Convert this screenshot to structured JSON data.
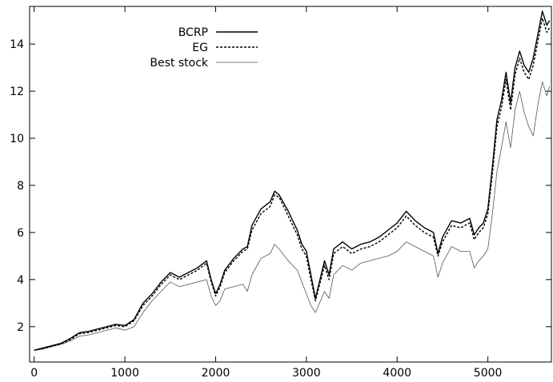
{
  "chart_data": {
    "type": "line",
    "title": "",
    "xlabel": "",
    "ylabel": "",
    "xlim": [
      -50,
      5700
    ],
    "ylim": [
      0.5,
      15.6
    ],
    "grid": false,
    "legend_position": "top-left",
    "x_ticks": [
      {
        "value": 0,
        "label": "0"
      },
      {
        "value": 1000,
        "label": "1000"
      },
      {
        "value": 2000,
        "label": "2000"
      },
      {
        "value": 3000,
        "label": "3000"
      },
      {
        "value": 4000,
        "label": "4000"
      },
      {
        "value": 5000,
        "label": "5000"
      }
    ],
    "y_ticks": [
      {
        "value": 2,
        "label": "2"
      },
      {
        "value": 4,
        "label": "4"
      },
      {
        "value": 6,
        "label": "6"
      },
      {
        "value": 8,
        "label": "8"
      },
      {
        "value": 10,
        "label": "10"
      },
      {
        "value": 12,
        "label": "12"
      },
      {
        "value": 14,
        "label": "14"
      }
    ],
    "series": [
      {
        "name": "BCRP",
        "style": "solid-thick",
        "color": "#000000",
        "points": [
          [
            0,
            1.0
          ],
          [
            100,
            1.1
          ],
          [
            200,
            1.2
          ],
          [
            300,
            1.3
          ],
          [
            400,
            1.5
          ],
          [
            500,
            1.75
          ],
          [
            600,
            1.8
          ],
          [
            700,
            1.9
          ],
          [
            800,
            2.0
          ],
          [
            900,
            2.1
          ],
          [
            1000,
            2.05
          ],
          [
            1100,
            2.3
          ],
          [
            1200,
            3.0
          ],
          [
            1300,
            3.4
          ],
          [
            1400,
            3.9
          ],
          [
            1500,
            4.3
          ],
          [
            1600,
            4.1
          ],
          [
            1700,
            4.3
          ],
          [
            1800,
            4.5
          ],
          [
            1900,
            4.8
          ],
          [
            1950,
            4.0
          ],
          [
            2000,
            3.4
          ],
          [
            2050,
            3.8
          ],
          [
            2100,
            4.4
          ],
          [
            2200,
            4.9
          ],
          [
            2300,
            5.3
          ],
          [
            2350,
            5.4
          ],
          [
            2400,
            6.3
          ],
          [
            2500,
            7.0
          ],
          [
            2600,
            7.3
          ],
          [
            2650,
            7.75
          ],
          [
            2700,
            7.6
          ],
          [
            2800,
            6.9
          ],
          [
            2900,
            6.1
          ],
          [
            2950,
            5.5
          ],
          [
            3000,
            5.2
          ],
          [
            3050,
            4.2
          ],
          [
            3100,
            3.2
          ],
          [
            3200,
            4.8
          ],
          [
            3250,
            4.2
          ],
          [
            3300,
            5.3
          ],
          [
            3400,
            5.6
          ],
          [
            3500,
            5.3
          ],
          [
            3600,
            5.5
          ],
          [
            3700,
            5.6
          ],
          [
            3800,
            5.8
          ],
          [
            3900,
            6.1
          ],
          [
            4000,
            6.4
          ],
          [
            4100,
            6.9
          ],
          [
            4200,
            6.5
          ],
          [
            4300,
            6.2
          ],
          [
            4400,
            6.0
          ],
          [
            4450,
            5.1
          ],
          [
            4500,
            5.8
          ],
          [
            4600,
            6.5
          ],
          [
            4700,
            6.4
          ],
          [
            4800,
            6.6
          ],
          [
            4850,
            5.9
          ],
          [
            4900,
            6.2
          ],
          [
            4950,
            6.4
          ],
          [
            5000,
            7.0
          ],
          [
            5050,
            8.8
          ],
          [
            5100,
            10.8
          ],
          [
            5150,
            11.6
          ],
          [
            5200,
            12.8
          ],
          [
            5250,
            11.5
          ],
          [
            5300,
            13.0
          ],
          [
            5350,
            13.7
          ],
          [
            5400,
            13.1
          ],
          [
            5450,
            12.8
          ],
          [
            5500,
            13.4
          ],
          [
            5550,
            14.4
          ],
          [
            5600,
            15.4
          ],
          [
            5650,
            14.8
          ],
          [
            5680,
            15.0
          ]
        ]
      },
      {
        "name": "EG",
        "style": "dashed",
        "color": "#000000",
        "points": [
          [
            0,
            1.0
          ],
          [
            100,
            1.08
          ],
          [
            200,
            1.18
          ],
          [
            300,
            1.28
          ],
          [
            400,
            1.45
          ],
          [
            500,
            1.7
          ],
          [
            600,
            1.75
          ],
          [
            700,
            1.85
          ],
          [
            800,
            1.95
          ],
          [
            900,
            2.05
          ],
          [
            1000,
            2.0
          ],
          [
            1100,
            2.25
          ],
          [
            1200,
            2.9
          ],
          [
            1300,
            3.3
          ],
          [
            1400,
            3.8
          ],
          [
            1500,
            4.2
          ],
          [
            1600,
            4.0
          ],
          [
            1700,
            4.2
          ],
          [
            1800,
            4.4
          ],
          [
            1900,
            4.7
          ],
          [
            1950,
            3.9
          ],
          [
            2000,
            3.3
          ],
          [
            2050,
            3.7
          ],
          [
            2100,
            4.3
          ],
          [
            2200,
            4.8
          ],
          [
            2300,
            5.2
          ],
          [
            2350,
            5.3
          ],
          [
            2400,
            6.1
          ],
          [
            2500,
            6.8
          ],
          [
            2600,
            7.1
          ],
          [
            2650,
            7.6
          ],
          [
            2700,
            7.5
          ],
          [
            2800,
            6.7
          ],
          [
            2900,
            5.9
          ],
          [
            2950,
            5.3
          ],
          [
            3000,
            5.0
          ],
          [
            3050,
            4.0
          ],
          [
            3100,
            3.1
          ],
          [
            3200,
            4.6
          ],
          [
            3250,
            4.0
          ],
          [
            3300,
            5.1
          ],
          [
            3400,
            5.4
          ],
          [
            3500,
            5.1
          ],
          [
            3600,
            5.3
          ],
          [
            3700,
            5.4
          ],
          [
            3800,
            5.6
          ],
          [
            3900,
            5.9
          ],
          [
            4000,
            6.2
          ],
          [
            4100,
            6.7
          ],
          [
            4200,
            6.3
          ],
          [
            4300,
            6.0
          ],
          [
            4400,
            5.8
          ],
          [
            4450,
            5.0
          ],
          [
            4500,
            5.6
          ],
          [
            4600,
            6.3
          ],
          [
            4700,
            6.2
          ],
          [
            4800,
            6.4
          ],
          [
            4850,
            5.7
          ],
          [
            4900,
            6.0
          ],
          [
            4950,
            6.2
          ],
          [
            5000,
            6.8
          ],
          [
            5050,
            8.5
          ],
          [
            5100,
            10.5
          ],
          [
            5150,
            11.3
          ],
          [
            5200,
            12.5
          ],
          [
            5250,
            11.2
          ],
          [
            5300,
            12.7
          ],
          [
            5350,
            13.4
          ],
          [
            5400,
            12.8
          ],
          [
            5450,
            12.5
          ],
          [
            5500,
            13.1
          ],
          [
            5550,
            14.1
          ],
          [
            5600,
            15.1
          ],
          [
            5650,
            14.5
          ],
          [
            5680,
            14.7
          ]
        ]
      },
      {
        "name": "Best stock",
        "style": "solid-thin",
        "color": "#555555",
        "points": [
          [
            0,
            1.0
          ],
          [
            100,
            1.05
          ],
          [
            200,
            1.15
          ],
          [
            300,
            1.25
          ],
          [
            400,
            1.4
          ],
          [
            500,
            1.6
          ],
          [
            600,
            1.65
          ],
          [
            700,
            1.75
          ],
          [
            800,
            1.85
          ],
          [
            900,
            1.95
          ],
          [
            1000,
            1.85
          ],
          [
            1100,
            2.0
          ],
          [
            1200,
            2.6
          ],
          [
            1300,
            3.1
          ],
          [
            1400,
            3.5
          ],
          [
            1500,
            3.9
          ],
          [
            1600,
            3.7
          ],
          [
            1700,
            3.8
          ],
          [
            1800,
            3.9
          ],
          [
            1900,
            4.0
          ],
          [
            1950,
            3.3
          ],
          [
            2000,
            2.9
          ],
          [
            2050,
            3.1
          ],
          [
            2100,
            3.6
          ],
          [
            2200,
            3.7
          ],
          [
            2300,
            3.8
          ],
          [
            2350,
            3.5
          ],
          [
            2400,
            4.2
          ],
          [
            2500,
            4.9
          ],
          [
            2600,
            5.1
          ],
          [
            2650,
            5.5
          ],
          [
            2700,
            5.3
          ],
          [
            2800,
            4.8
          ],
          [
            2900,
            4.4
          ],
          [
            2950,
            3.9
          ],
          [
            3000,
            3.4
          ],
          [
            3050,
            2.9
          ],
          [
            3100,
            2.6
          ],
          [
            3200,
            3.5
          ],
          [
            3250,
            3.2
          ],
          [
            3300,
            4.2
          ],
          [
            3400,
            4.6
          ],
          [
            3500,
            4.4
          ],
          [
            3600,
            4.7
          ],
          [
            3700,
            4.8
          ],
          [
            3800,
            4.9
          ],
          [
            3900,
            5.0
          ],
          [
            4000,
            5.2
          ],
          [
            4100,
            5.6
          ],
          [
            4200,
            5.4
          ],
          [
            4300,
            5.2
          ],
          [
            4400,
            5.0
          ],
          [
            4450,
            4.1
          ],
          [
            4500,
            4.7
          ],
          [
            4600,
            5.4
          ],
          [
            4700,
            5.2
          ],
          [
            4800,
            5.2
          ],
          [
            4850,
            4.5
          ],
          [
            4900,
            4.8
          ],
          [
            4950,
            5.0
          ],
          [
            5000,
            5.3
          ],
          [
            5050,
            6.8
          ],
          [
            5100,
            8.6
          ],
          [
            5150,
            9.6
          ],
          [
            5200,
            10.7
          ],
          [
            5250,
            9.6
          ],
          [
            5300,
            11.2
          ],
          [
            5350,
            12.0
          ],
          [
            5400,
            11.1
          ],
          [
            5450,
            10.5
          ],
          [
            5500,
            10.1
          ],
          [
            5550,
            11.4
          ],
          [
            5600,
            12.4
          ],
          [
            5650,
            11.8
          ],
          [
            5680,
            12.2
          ]
        ]
      }
    ]
  }
}
